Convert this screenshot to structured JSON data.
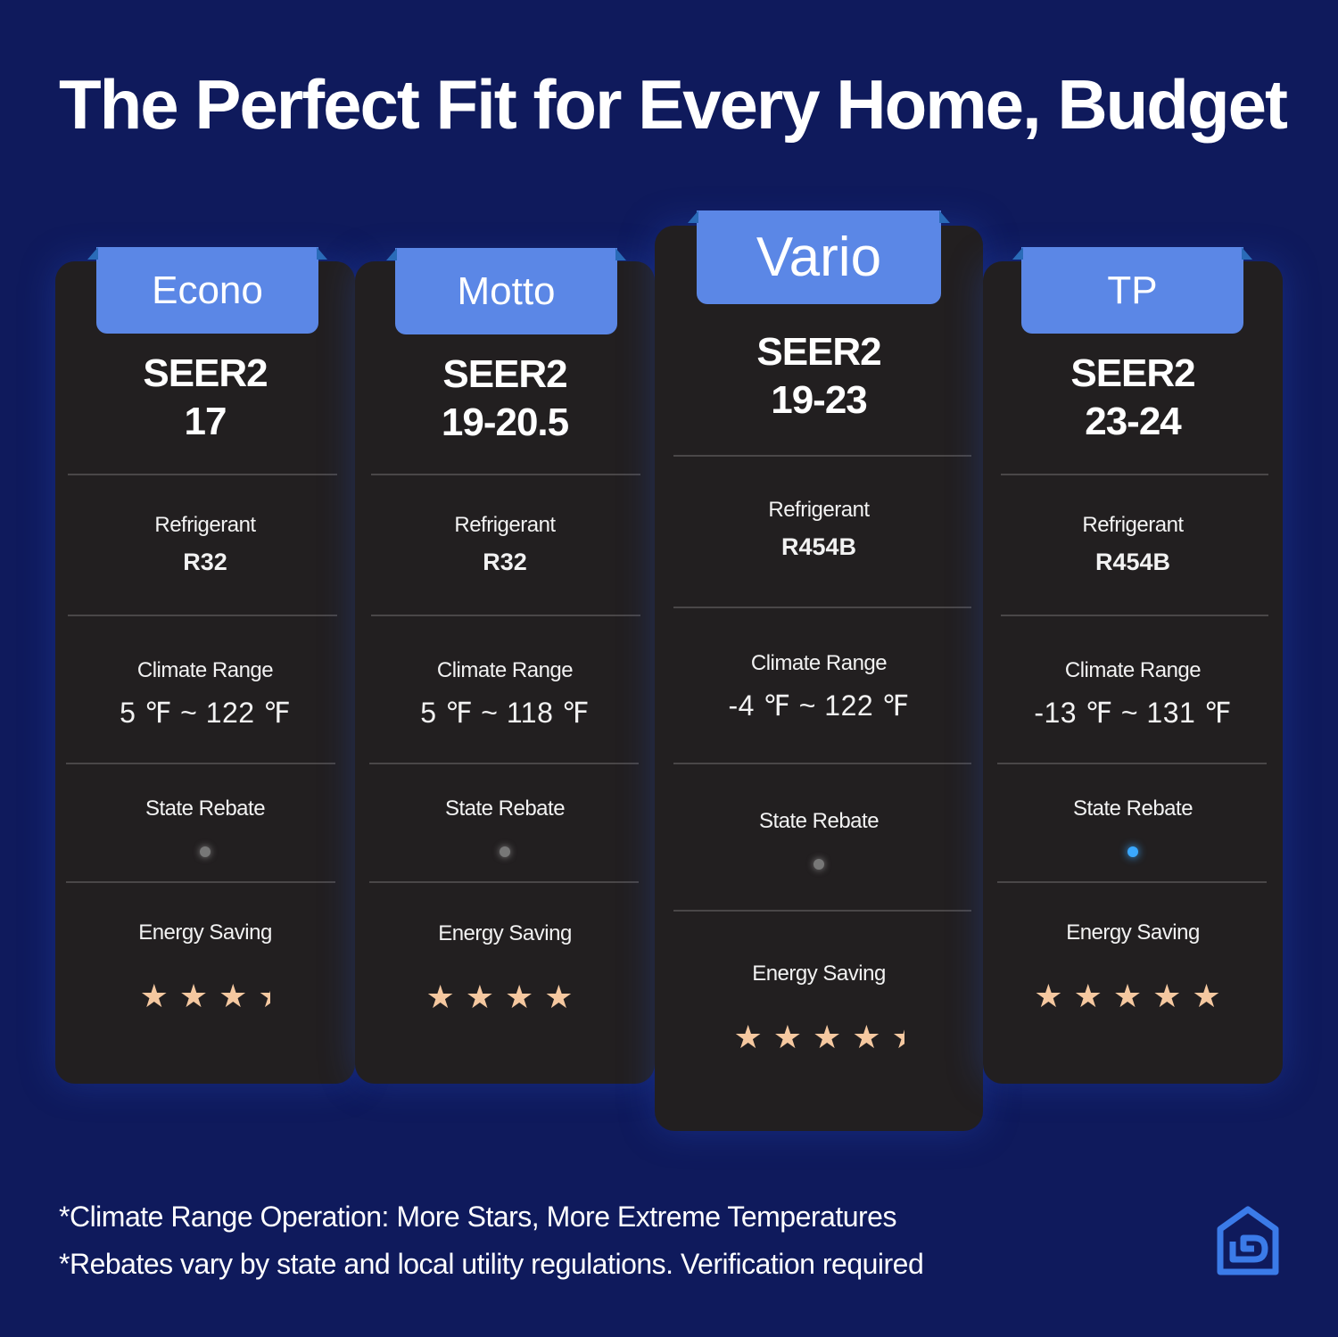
{
  "title": "The Perfect Fit for Every Home, Budget",
  "cards": [
    {
      "name": "Econo",
      "seer_label": "SEER2",
      "seer_value": "17",
      "refrigerant_label": "Refrigerant",
      "refrigerant": "R32",
      "climate_label": "Climate Range",
      "climate_range": "5 ℉ ~ 122 ℉",
      "rebate_label": "State Rebate",
      "rebate": false,
      "energy_label": "Energy Saving",
      "stars": 3.5,
      "featured": false
    },
    {
      "name": "Motto",
      "seer_label": "SEER2",
      "seer_value": "19-20.5",
      "refrigerant_label": "Refrigerant",
      "refrigerant": "R32",
      "climate_label": "Climate Range",
      "climate_range": "5 ℉ ~ 118 ℉",
      "rebate_label": "State Rebate",
      "rebate": false,
      "energy_label": "Energy Saving",
      "stars": 4,
      "featured": false
    },
    {
      "name": "Vario",
      "seer_label": "SEER2",
      "seer_value": "19-23",
      "refrigerant_label": "Refrigerant",
      "refrigerant": "R454B",
      "climate_label": "Climate Range",
      "climate_range": "-4 ℉ ~ 122 ℉",
      "rebate_label": "State Rebate",
      "rebate": false,
      "energy_label": "Energy Saving",
      "stars": 4.5,
      "featured": true
    },
    {
      "name": "TP",
      "seer_label": "SEER2",
      "seer_value": "23-24",
      "refrigerant_label": "Refrigerant",
      "refrigerant": "R454B",
      "climate_label": "Climate Range",
      "climate_range": "-13 ℉ ~ 131 ℉",
      "rebate_label": "State Rebate",
      "rebate": true,
      "energy_label": "Energy Saving",
      "stars": 5,
      "featured": false
    }
  ],
  "notes": [
    "*Climate Range Operation: More Stars, More Extreme Temperatures",
    "*Rebates vary by state and local utility regulations. Verification required"
  ],
  "colors": {
    "background": "#0f1a5c",
    "card": "#221f20",
    "tab": "#5b87e6",
    "star": "#f5c8a0",
    "rebate_on": "#3aa8ff",
    "rebate_off": "#777777"
  },
  "logo_icon": "house-logo-icon"
}
